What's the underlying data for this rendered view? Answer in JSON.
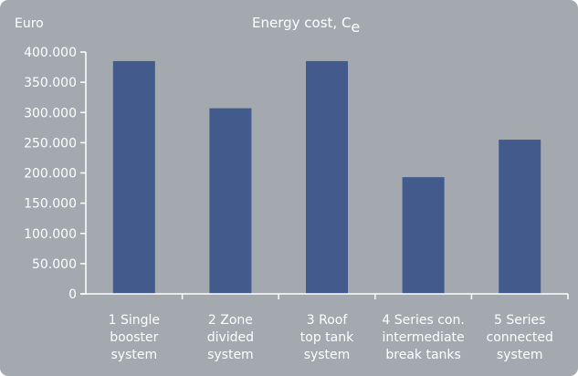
{
  "colors": {
    "background": "#a3a9af",
    "bar": "#425b8c",
    "axis": "#ffffff",
    "text": "#ffffff"
  },
  "chart_data": {
    "type": "bar",
    "title": "Energy cost, C",
    "title_subscript": "e",
    "ylabel": "Euro",
    "xlabel": "",
    "categories": [
      [
        "1 Single",
        "booster",
        "system"
      ],
      [
        "2 Zone",
        "divided",
        "system"
      ],
      [
        "3 Roof",
        "top tank",
        "system"
      ],
      [
        "4 Series con.",
        "intermediate",
        "break tanks"
      ],
      [
        "5 Series",
        "connected",
        "system"
      ]
    ],
    "values": [
      385000,
      307000,
      385000,
      193000,
      255000
    ],
    "ylim": [
      0,
      400000
    ],
    "yticks": [
      0,
      50000,
      100000,
      150000,
      200000,
      250000,
      300000,
      350000,
      400000
    ],
    "ytick_labels": [
      "0",
      "50.000",
      "100.000",
      "150.000",
      "200.000",
      "250.000",
      "300.000",
      "350.000",
      "400.000"
    ],
    "grid": false,
    "legend": "none"
  }
}
